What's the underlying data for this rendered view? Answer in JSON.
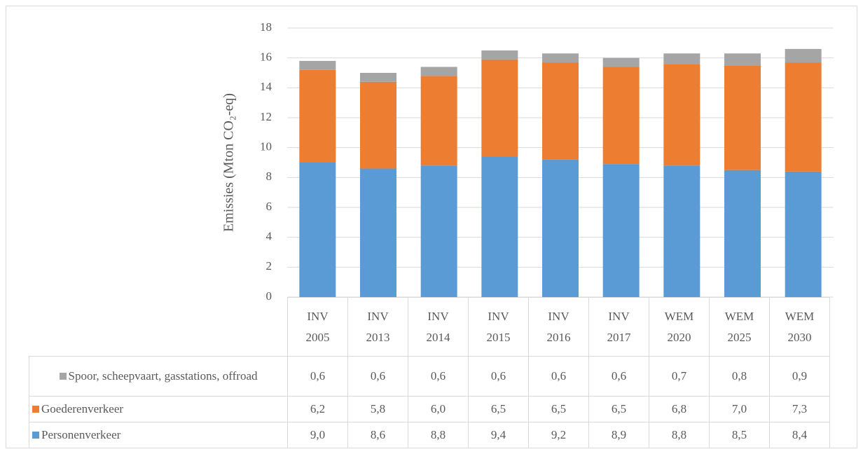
{
  "chart_data": {
    "type": "stacked_bar",
    "y_axis_label": "Emissies (Mton CO₂-eq)",
    "categories": [
      "INV 2005",
      "INV 2013",
      "INV 2014",
      "INV 2015",
      "INV 2016",
      "INV 2017",
      "WEM 2020",
      "WEM 2025",
      "WEM 2030"
    ],
    "series": [
      {
        "name": "Personenverkeer",
        "color": "#5b9bd5",
        "values": [
          9.0,
          8.6,
          8.8,
          9.4,
          9.2,
          8.9,
          8.8,
          8.5,
          8.4
        ],
        "value_labels": [
          "9,0",
          "8,6",
          "8,8",
          "9,4",
          "9,2",
          "8,9",
          "8,8",
          "8,5",
          "8,4"
        ]
      },
      {
        "name": "Goederenverkeer",
        "color": "#ed7d31",
        "values": [
          6.2,
          5.8,
          6.0,
          6.5,
          6.5,
          6.5,
          6.8,
          7.0,
          7.3
        ],
        "value_labels": [
          "6,2",
          "5,8",
          "6,0",
          "6,5",
          "6,5",
          "6,5",
          "6,8",
          "7,0",
          "7,3"
        ]
      },
      {
        "name": "Spoor, scheepvaart, gasstations, offroad",
        "color": "#a5a5a5",
        "values": [
          0.6,
          0.6,
          0.6,
          0.6,
          0.6,
          0.6,
          0.7,
          0.8,
          0.9
        ],
        "value_labels": [
          "0,6",
          "0,6",
          "0,6",
          "0,6",
          "0,6",
          "0,6",
          "0,7",
          "0,8",
          "0,9"
        ]
      }
    ],
    "ylim": [
      0,
      18
    ],
    "yticks": [
      0,
      2,
      4,
      6,
      8,
      10,
      12,
      14,
      16,
      18
    ],
    "grid": true
  }
}
